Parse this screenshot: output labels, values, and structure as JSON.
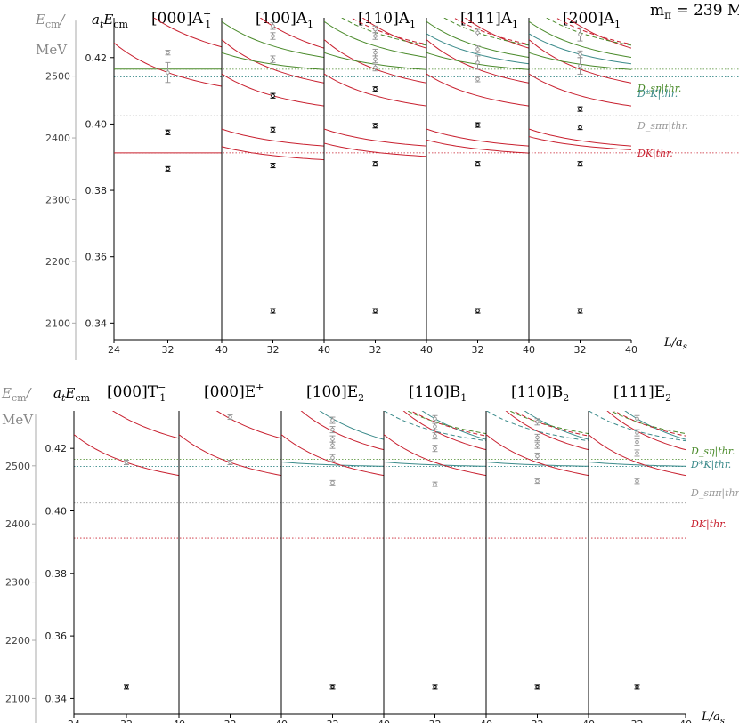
{
  "header": {
    "mass": "m_π = 239 MeV",
    "ecm_label": "E",
    "ecm_sub": "cm",
    "mev": "MeV",
    "ylabel_main": "a",
    "x_axis_label": "L/a_s"
  },
  "colors": {
    "red": "#c8202f",
    "green": "#4a8a2a",
    "teal": "#3a8a8a",
    "gray": "#999999",
    "black": "#000000"
  },
  "chart_data": [
    {
      "type": "scatter",
      "row": "top",
      "ylim": [
        0.335,
        0.432
      ],
      "y_ticks": [
        0.34,
        0.36,
        0.38,
        0.4,
        0.42
      ],
      "y_tick_labels": [
        "0.34",
        "0.36",
        "0.38",
        "0.40",
        "0.42"
      ],
      "ecm_ticks": [
        2100,
        2200,
        2300,
        2400,
        2500
      ],
      "x_ticks": [
        24,
        32,
        40
      ],
      "thresholds": [
        {
          "label": "D_sη|thr.",
          "value": 0.4165,
          "color": "#4a8a2a"
        },
        {
          "label": "D*K|thr.",
          "value": 0.4142,
          "color": "#3a8a8a"
        },
        {
          "label": "D_sππ|thr.",
          "value": 0.4025,
          "color": "#999999"
        },
        {
          "label": "DK|thr.",
          "value": 0.3913,
          "color": "#c8202f"
        }
      ],
      "panels": [
        {
          "title": "[000]A",
          "sub": "1",
          "sup": "+",
          "x_ticks_shown": [
            "24",
            "32",
            "40"
          ],
          "points": [
            {
              "y": 0.3865,
              "e": 0.0006,
              "c": "black"
            },
            {
              "y": 0.3975,
              "e": 0.0007,
              "c": "black"
            },
            {
              "y": 0.4155,
              "e": 0.003,
              "c": "gray"
            },
            {
              "y": 0.4215,
              "e": 0.0007,
              "c": "gray"
            }
          ]
        },
        {
          "title": "[100]A",
          "sub": "1",
          "sup": "",
          "x_ticks_shown": [
            "32",
            "40"
          ],
          "points": [
            {
              "y": 0.3437,
              "e": 0.0004,
              "c": "black"
            },
            {
              "y": 0.3875,
              "e": 0.0006,
              "c": "black"
            },
            {
              "y": 0.3983,
              "e": 0.0006,
              "c": "black"
            },
            {
              "y": 0.4085,
              "e": 0.0007,
              "c": "black"
            },
            {
              "y": 0.4195,
              "e": 0.001,
              "c": "gray"
            },
            {
              "y": 0.4265,
              "e": 0.001,
              "c": "gray"
            },
            {
              "y": 0.4295,
              "e": 0.001,
              "c": "gray"
            }
          ]
        },
        {
          "title": "[110]A",
          "sub": "1",
          "sup": "",
          "x_ticks_shown": [
            "32",
            "40"
          ],
          "points": [
            {
              "y": 0.3437,
              "e": 0.0004,
              "c": "black"
            },
            {
              "y": 0.388,
              "e": 0.0006,
              "c": "black"
            },
            {
              "y": 0.3995,
              "e": 0.0006,
              "c": "black"
            },
            {
              "y": 0.4105,
              "e": 0.0006,
              "c": "black"
            },
            {
              "y": 0.417,
              "e": 0.001,
              "c": "gray"
            },
            {
              "y": 0.4195,
              "e": 0.001,
              "c": "gray"
            },
            {
              "y": 0.4215,
              "e": 0.001,
              "c": "gray"
            },
            {
              "y": 0.4265,
              "e": 0.001,
              "c": "gray"
            },
            {
              "y": 0.4285,
              "e": 0.001,
              "c": "gray"
            }
          ]
        },
        {
          "title": "[111]A",
          "sub": "1",
          "sup": "",
          "x_ticks_shown": [
            "32",
            "40"
          ],
          "points": [
            {
              "y": 0.3437,
              "e": 0.0004,
              "c": "black"
            },
            {
              "y": 0.388,
              "e": 0.0006,
              "c": "black"
            },
            {
              "y": 0.3997,
              "e": 0.0006,
              "c": "black"
            },
            {
              "y": 0.4135,
              "e": 0.0008,
              "c": "gray"
            },
            {
              "y": 0.4185,
              "e": 0.002,
              "c": "gray"
            },
            {
              "y": 0.4225,
              "e": 0.001,
              "c": "gray"
            },
            {
              "y": 0.4275,
              "e": 0.001,
              "c": "gray"
            }
          ]
        },
        {
          "title": "[200]A",
          "sub": "1",
          "sup": "",
          "x_ticks_shown": [
            "32",
            "40"
          ],
          "points": [
            {
              "y": 0.3437,
              "e": 0.0004,
              "c": "black"
            },
            {
              "y": 0.388,
              "e": 0.0006,
              "c": "black"
            },
            {
              "y": 0.399,
              "e": 0.0006,
              "c": "black"
            },
            {
              "y": 0.4045,
              "e": 0.0006,
              "c": "black"
            },
            {
              "y": 0.4175,
              "e": 0.0025,
              "c": "gray"
            },
            {
              "y": 0.421,
              "e": 0.001,
              "c": "gray"
            },
            {
              "y": 0.427,
              "e": 0.002,
              "c": "gray"
            }
          ]
        }
      ]
    },
    {
      "type": "scatter",
      "row": "bottom",
      "ylim": [
        0.335,
        0.432
      ],
      "y_ticks": [
        0.34,
        0.36,
        0.38,
        0.4,
        0.42
      ],
      "y_tick_labels": [
        "0.34",
        "0.36",
        "0.38",
        "0.40",
        "0.42"
      ],
      "ecm_ticks": [
        2100,
        2200,
        2300,
        2400,
        2500
      ],
      "x_ticks": [
        24,
        32,
        40
      ],
      "thresholds": [
        {
          "label": "D_sη|thr.",
          "value": 0.4165,
          "color": "#4a8a2a"
        },
        {
          "label": "D*K|thr.",
          "value": 0.4142,
          "color": "#3a8a8a"
        },
        {
          "label": "D_sππ|thr.",
          "value": 0.4025,
          "color": "#999999"
        },
        {
          "label": "DK|thr.",
          "value": 0.3913,
          "color": "#c8202f"
        }
      ],
      "panels": [
        {
          "title": "[000]T",
          "sub": "1",
          "sup": "−",
          "x_ticks_shown": [
            "24",
            "32",
            "40"
          ],
          "points": [
            {
              "y": 0.3437,
              "e": 0.0004,
              "c": "black"
            },
            {
              "y": 0.4155,
              "e": 0.0006,
              "c": "gray"
            }
          ]
        },
        {
          "title": "[000]E",
          "sub": "",
          "sup": "+",
          "x_ticks_shown": [
            "32",
            "40"
          ],
          "points": [
            {
              "y": 0.4155,
              "e": 0.0006,
              "c": "gray"
            },
            {
              "y": 0.43,
              "e": 0.0006,
              "c": "gray"
            }
          ]
        },
        {
          "title": "[100]E",
          "sub": "2",
          "sup": "",
          "x_ticks_shown": [
            "32",
            "40"
          ],
          "points": [
            {
              "y": 0.3437,
              "e": 0.0004,
              "c": "black"
            },
            {
              "y": 0.409,
              "e": 0.0006,
              "c": "gray"
            },
            {
              "y": 0.417,
              "e": 0.001,
              "c": "gray"
            },
            {
              "y": 0.421,
              "e": 0.001,
              "c": "gray"
            },
            {
              "y": 0.423,
              "e": 0.001,
              "c": "gray"
            },
            {
              "y": 0.426,
              "e": 0.001,
              "c": "gray"
            },
            {
              "y": 0.429,
              "e": 0.001,
              "c": "gray"
            }
          ]
        },
        {
          "title": "[110]B",
          "sub": "1",
          "sup": "",
          "x_ticks_shown": [
            "32",
            "40"
          ],
          "points": [
            {
              "y": 0.3437,
              "e": 0.0004,
              "c": "black"
            },
            {
              "y": 0.4085,
              "e": 0.0006,
              "c": "gray"
            },
            {
              "y": 0.42,
              "e": 0.001,
              "c": "gray"
            },
            {
              "y": 0.424,
              "e": 0.001,
              "c": "gray"
            },
            {
              "y": 0.427,
              "e": 0.001,
              "c": "gray"
            },
            {
              "y": 0.4295,
              "e": 0.001,
              "c": "gray"
            }
          ]
        },
        {
          "title": "[110]B",
          "sub": "2",
          "sup": "",
          "x_ticks_shown": [
            "32",
            "40"
          ],
          "points": [
            {
              "y": 0.3437,
              "e": 0.0004,
              "c": "black"
            },
            {
              "y": 0.4095,
              "e": 0.0006,
              "c": "gray"
            },
            {
              "y": 0.4175,
              "e": 0.001,
              "c": "gray"
            },
            {
              "y": 0.421,
              "e": 0.001,
              "c": "gray"
            },
            {
              "y": 0.4235,
              "e": 0.001,
              "c": "gray"
            },
            {
              "y": 0.4285,
              "e": 0.001,
              "c": "gray"
            }
          ]
        },
        {
          "title": "[111]E",
          "sub": "2",
          "sup": "",
          "x_ticks_shown": [
            "32",
            "40"
          ],
          "points": [
            {
              "y": 0.3437,
              "e": 0.0004,
              "c": "black"
            },
            {
              "y": 0.4095,
              "e": 0.0008,
              "c": "gray"
            },
            {
              "y": 0.4185,
              "e": 0.001,
              "c": "gray"
            },
            {
              "y": 0.422,
              "e": 0.001,
              "c": "gray"
            },
            {
              "y": 0.425,
              "e": 0.001,
              "c": "gray"
            },
            {
              "y": 0.4295,
              "e": 0.001,
              "c": "gray"
            }
          ]
        }
      ]
    }
  ]
}
